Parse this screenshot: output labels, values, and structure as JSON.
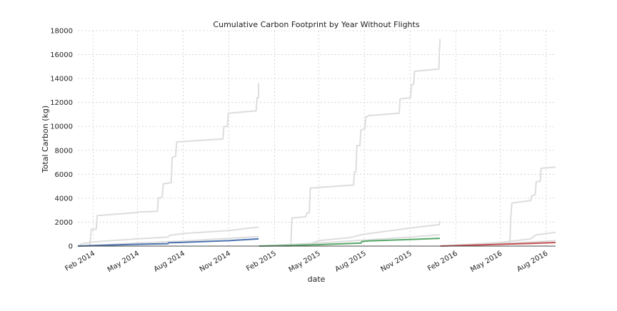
{
  "chart_data": {
    "type": "line",
    "title": "Cumulative Carbon Footprint by Year Without Flights",
    "xlabel": "date",
    "ylabel": "Total Carbon (kg)",
    "ylim": [
      0,
      18000
    ],
    "xlim": [
      "2014-01-01",
      "2016-08-20"
    ],
    "y_ticks": [
      "0",
      "2000",
      "4000",
      "6000",
      "8000",
      "10000",
      "12000",
      "14000",
      "16000",
      "18000"
    ],
    "x_ticks": [
      {
        "date": "2014-02-01",
        "label": "Feb 2014"
      },
      {
        "date": "2014-05-01",
        "label": "May 2014"
      },
      {
        "date": "2014-08-01",
        "label": "Aug 2014"
      },
      {
        "date": "2014-11-01",
        "label": "Nov 2014"
      },
      {
        "date": "2015-02-01",
        "label": "Feb 2015"
      },
      {
        "date": "2015-05-01",
        "label": "May 2015"
      },
      {
        "date": "2015-08-01",
        "label": "Aug 2015"
      },
      {
        "date": "2015-11-01",
        "label": "Nov 2015"
      },
      {
        "date": "2016-02-01",
        "label": "Feb 2016"
      },
      {
        "date": "2016-05-01",
        "label": "May 2016"
      },
      {
        "date": "2016-08-01",
        "label": "Aug 2016"
      }
    ],
    "grid": true,
    "series": [
      {
        "color": "#dddddd",
        "width": 2,
        "points": [
          [
            "2014-01-01",
            0
          ],
          [
            "2014-01-25",
            0
          ],
          [
            "2014-01-28",
            1400
          ],
          [
            "2014-02-07",
            1400
          ],
          [
            "2014-02-09",
            2550
          ],
          [
            "2014-04-30",
            2800
          ],
          [
            "2014-05-01",
            2850
          ],
          [
            "2014-06-10",
            2900
          ],
          [
            "2014-06-12",
            4000
          ],
          [
            "2014-06-20",
            4100
          ],
          [
            "2014-06-22",
            5200
          ],
          [
            "2014-07-08",
            5300
          ],
          [
            "2014-07-10",
            7400
          ],
          [
            "2014-07-17",
            7500
          ],
          [
            "2014-07-19",
            8700
          ],
          [
            "2014-10-20",
            8950
          ],
          [
            "2014-10-22",
            10000
          ],
          [
            "2014-10-29",
            10000
          ],
          [
            "2014-10-31",
            11100
          ],
          [
            "2014-12-26",
            11300
          ],
          [
            "2014-12-28",
            12400
          ],
          [
            "2014-12-31",
            12400
          ],
          [
            "2014-12-31",
            13600
          ]
        ]
      },
      {
        "color": "#dddddd",
        "width": 2,
        "points": [
          [
            "2014-01-01",
            0
          ],
          [
            "2014-01-10",
            200
          ],
          [
            "2014-02-01",
            350
          ],
          [
            "2014-05-01",
            600
          ],
          [
            "2014-07-01",
            750
          ],
          [
            "2014-07-05",
            900
          ],
          [
            "2014-08-01",
            1050
          ],
          [
            "2014-11-01",
            1300
          ],
          [
            "2014-12-31",
            1600
          ]
        ]
      },
      {
        "color": "#dddddd",
        "width": 2,
        "points": [
          [
            "2014-01-01",
            0
          ],
          [
            "2014-05-01",
            250
          ],
          [
            "2014-08-01",
            420
          ],
          [
            "2014-12-31",
            800
          ]
        ]
      },
      {
        "color": "#4c72b0",
        "width": 2,
        "points": [
          [
            "2014-01-01",
            0
          ],
          [
            "2014-02-01",
            50
          ],
          [
            "2014-05-01",
            150
          ],
          [
            "2014-07-01",
            200
          ],
          [
            "2014-07-03",
            280
          ],
          [
            "2014-08-01",
            310
          ],
          [
            "2014-11-01",
            450
          ],
          [
            "2014-12-31",
            600
          ]
        ]
      },
      {
        "color": "#dddddd",
        "width": 2,
        "points": [
          [
            "2015-01-01",
            0
          ],
          [
            "2015-03-06",
            0
          ],
          [
            "2015-03-08",
            2350
          ],
          [
            "2015-04-05",
            2450
          ],
          [
            "2015-04-07",
            2750
          ],
          [
            "2015-04-12",
            2800
          ],
          [
            "2015-04-14",
            4850
          ],
          [
            "2015-07-10",
            5100
          ],
          [
            "2015-07-12",
            6200
          ],
          [
            "2015-07-15",
            6200
          ],
          [
            "2015-07-17",
            8400
          ],
          [
            "2015-07-23",
            8400
          ],
          [
            "2015-07-25",
            9700
          ],
          [
            "2015-08-02",
            9800
          ],
          [
            "2015-08-04",
            10800
          ],
          [
            "2015-08-07",
            10800
          ],
          [
            "2015-08-09",
            10900
          ],
          [
            "2015-10-10",
            11100
          ],
          [
            "2015-10-12",
            12300
          ],
          [
            "2015-11-02",
            12400
          ],
          [
            "2015-11-04",
            13500
          ],
          [
            "2015-11-08",
            13500
          ],
          [
            "2015-11-10",
            14600
          ],
          [
            "2015-12-29",
            14800
          ],
          [
            "2015-12-30",
            16500
          ],
          [
            "2015-12-31",
            16800
          ],
          [
            "2015-12-31",
            17300
          ]
        ]
      },
      {
        "color": "#dddddd",
        "width": 2,
        "points": [
          [
            "2015-01-01",
            0
          ],
          [
            "2015-04-15",
            200
          ],
          [
            "2015-05-01",
            450
          ],
          [
            "2015-07-01",
            700
          ],
          [
            "2015-08-01",
            1000
          ],
          [
            "2015-11-01",
            1500
          ],
          [
            "2015-12-30",
            1800
          ],
          [
            "2015-12-31",
            2100
          ]
        ]
      },
      {
        "color": "#dddddd",
        "width": 2,
        "points": [
          [
            "2015-01-01",
            0
          ],
          [
            "2015-05-01",
            250
          ],
          [
            "2015-08-01",
            500
          ],
          [
            "2015-11-01",
            750
          ],
          [
            "2015-12-31",
            950
          ]
        ]
      },
      {
        "color": "#55a868",
        "width": 2,
        "points": [
          [
            "2015-01-01",
            0
          ],
          [
            "2015-05-01",
            120
          ],
          [
            "2015-07-25",
            250
          ],
          [
            "2015-07-27",
            380
          ],
          [
            "2015-08-10",
            430
          ],
          [
            "2015-11-01",
            550
          ],
          [
            "2015-12-31",
            650
          ]
        ]
      },
      {
        "color": "#dddddd",
        "width": 2,
        "points": [
          [
            "2016-01-01",
            0
          ],
          [
            "2016-05-20",
            300
          ],
          [
            "2016-05-22",
            2500
          ],
          [
            "2016-05-24",
            3600
          ],
          [
            "2016-07-01",
            3800
          ],
          [
            "2016-07-03",
            4200
          ],
          [
            "2016-07-10",
            4300
          ],
          [
            "2016-07-12",
            5400
          ],
          [
            "2016-07-20",
            5400
          ],
          [
            "2016-07-22",
            6500
          ],
          [
            "2016-08-20",
            6600
          ]
        ]
      },
      {
        "color": "#dddddd",
        "width": 2,
        "points": [
          [
            "2016-01-01",
            0
          ],
          [
            "2016-05-01",
            300
          ],
          [
            "2016-07-01",
            600
          ],
          [
            "2016-07-12",
            950
          ],
          [
            "2016-08-20",
            1150
          ]
        ]
      },
      {
        "color": "#dddddd",
        "width": 2,
        "points": [
          [
            "2016-01-01",
            0
          ],
          [
            "2016-05-01",
            200
          ],
          [
            "2016-08-20",
            450
          ]
        ]
      },
      {
        "color": "#c44e52",
        "width": 2,
        "points": [
          [
            "2016-01-01",
            0
          ],
          [
            "2016-03-01",
            80
          ],
          [
            "2016-05-01",
            150
          ],
          [
            "2016-07-01",
            220
          ],
          [
            "2016-08-20",
            300
          ]
        ]
      }
    ]
  }
}
